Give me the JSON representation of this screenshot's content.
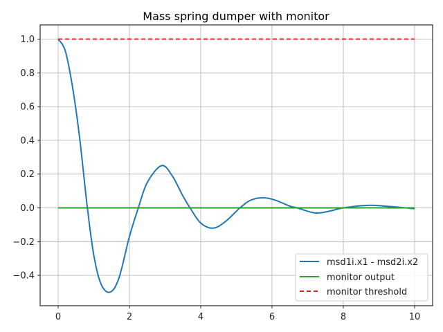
{
  "chart_data": {
    "type": "line",
    "title": "Mass spring dumper with monitor",
    "xlabel": "",
    "ylabel": "",
    "xlim": [
      -0.5,
      10.5
    ],
    "ylim": [
      -0.575,
      1.075
    ],
    "xticks": [
      0,
      2,
      4,
      6,
      8,
      10
    ],
    "xtick_labels": [
      "0",
      "2",
      "4",
      "6",
      "8",
      "10"
    ],
    "yticks": [
      -0.4,
      -0.2,
      0.0,
      0.2,
      0.4,
      0.6,
      0.8,
      1.0
    ],
    "ytick_labels": [
      "−0.4",
      "−0.2",
      "0.0",
      "0.2",
      "0.4",
      "0.6",
      "0.8",
      "1.0"
    ],
    "grid": true,
    "legend_position": "lower right",
    "series": [
      {
        "name": "msd1i.x1 - msd2i.x2",
        "color": "#1f77b4",
        "style": "solid",
        "x": [
          0,
          0.2,
          0.4,
          0.6,
          0.82,
          1.0,
          1.2,
          1.45,
          1.7,
          2.0,
          2.25,
          2.5,
          2.9,
          3.2,
          3.5,
          3.7,
          4.0,
          4.35,
          4.7,
          5.1,
          5.4,
          5.75,
          6.1,
          6.5,
          6.7,
          7.2,
          7.6,
          8.0,
          8.7,
          9.3,
          10.0
        ],
        "y": [
          1.0,
          0.93,
          0.72,
          0.42,
          0.0,
          -0.28,
          -0.45,
          -0.5,
          -0.42,
          -0.17,
          0.0,
          0.15,
          0.25,
          0.19,
          0.07,
          0.0,
          -0.09,
          -0.12,
          -0.08,
          0.0,
          0.045,
          0.06,
          0.045,
          0.01,
          0.0,
          -0.03,
          -0.02,
          0.0,
          0.015,
          0.008,
          -0.005
        ]
      },
      {
        "name": "monitor output",
        "color": "#2ca02c",
        "style": "solid",
        "x": [
          0,
          10
        ],
        "y": [
          0,
          0
        ]
      },
      {
        "name": "monitor threshold",
        "color": "#d62728",
        "style": "dashed",
        "x": [
          0,
          10
        ],
        "y": [
          1.0,
          1.0
        ]
      }
    ]
  }
}
